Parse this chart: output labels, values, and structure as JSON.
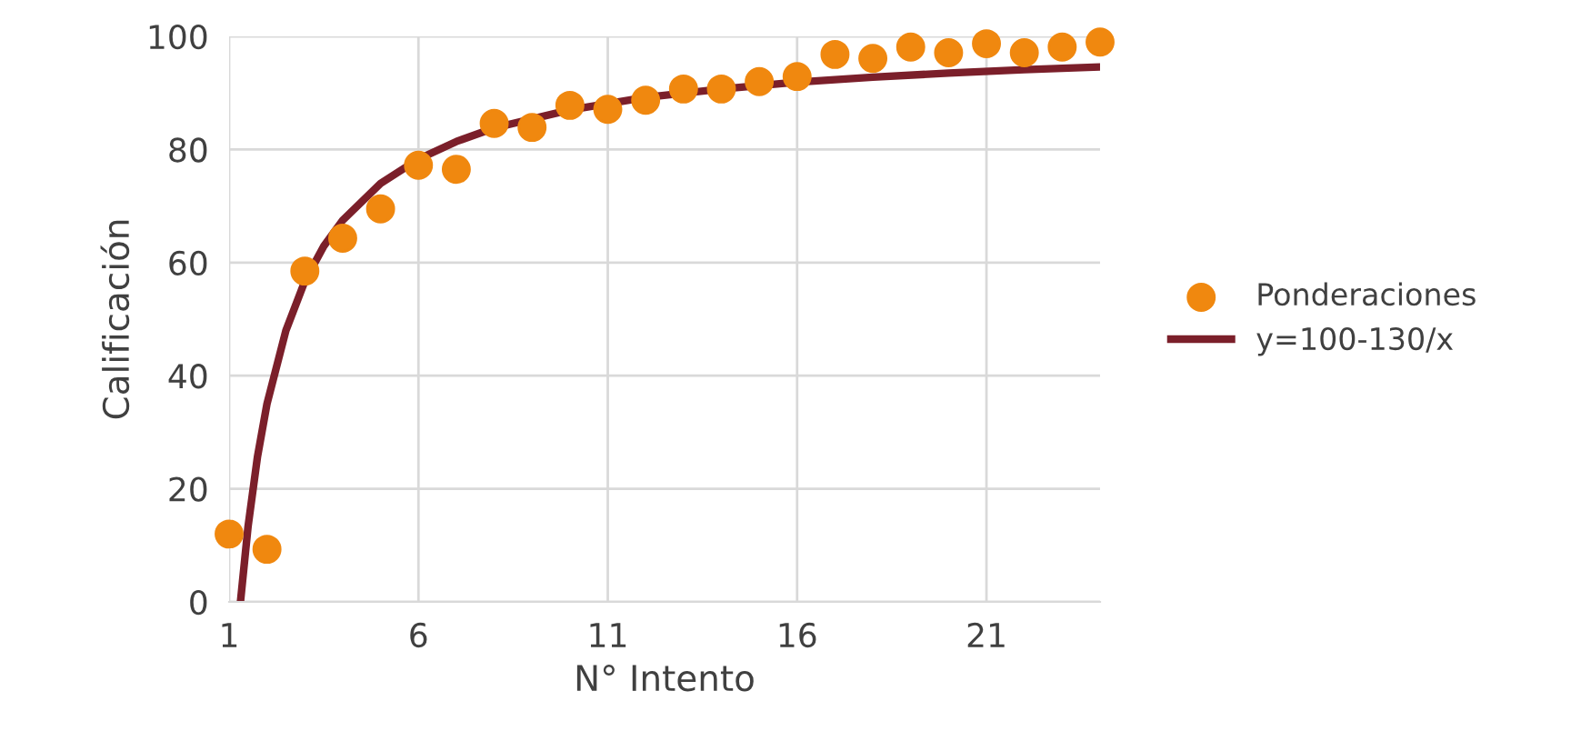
{
  "chart_data": {
    "type": "scatter",
    "xlabel": "N° Intento",
    "ylabel": "Calificación",
    "xlim": [
      1,
      24
    ],
    "xticks": [
      1,
      6,
      11,
      16,
      21
    ],
    "ylim": [
      0,
      100
    ],
    "yticks": [
      0,
      20,
      40,
      60,
      80,
      100
    ],
    "grid": true,
    "legend": "right",
    "series": [
      {
        "name": "Ponderaciones",
        "marker": "circle",
        "color": "#f0880f",
        "x": [
          1,
          2,
          3,
          4,
          5,
          6,
          7,
          8,
          9,
          10,
          11,
          12,
          13,
          14,
          15,
          16,
          17,
          18,
          19,
          20,
          21,
          22,
          23,
          24
        ],
        "values": [
          12,
          9.3,
          58.5,
          64.3,
          69.5,
          77.2,
          76.5,
          84.6,
          83.9,
          87.8,
          87.1,
          88.7,
          90.7,
          90.7,
          92,
          92.9,
          96.8,
          96.1,
          98.1,
          97.1,
          98.7,
          97.1,
          98.1,
          99
        ]
      },
      {
        "name": "y=100-130/x",
        "type": "line",
        "color": "#7b1f2a",
        "line_style": "solid",
        "x": [
          1.3,
          1.5,
          1.75,
          2,
          2.5,
          3,
          3.5,
          4,
          5,
          6,
          7,
          8,
          10,
          12,
          14,
          16,
          18,
          20,
          22,
          24
        ],
        "values": [
          0,
          13.3,
          25.7,
          35,
          48,
          56.7,
          62.9,
          67.5,
          74,
          78.3,
          81.4,
          83.8,
          87,
          89.2,
          90.7,
          91.9,
          92.8,
          93.5,
          94.1,
          94.6
        ]
      }
    ]
  }
}
